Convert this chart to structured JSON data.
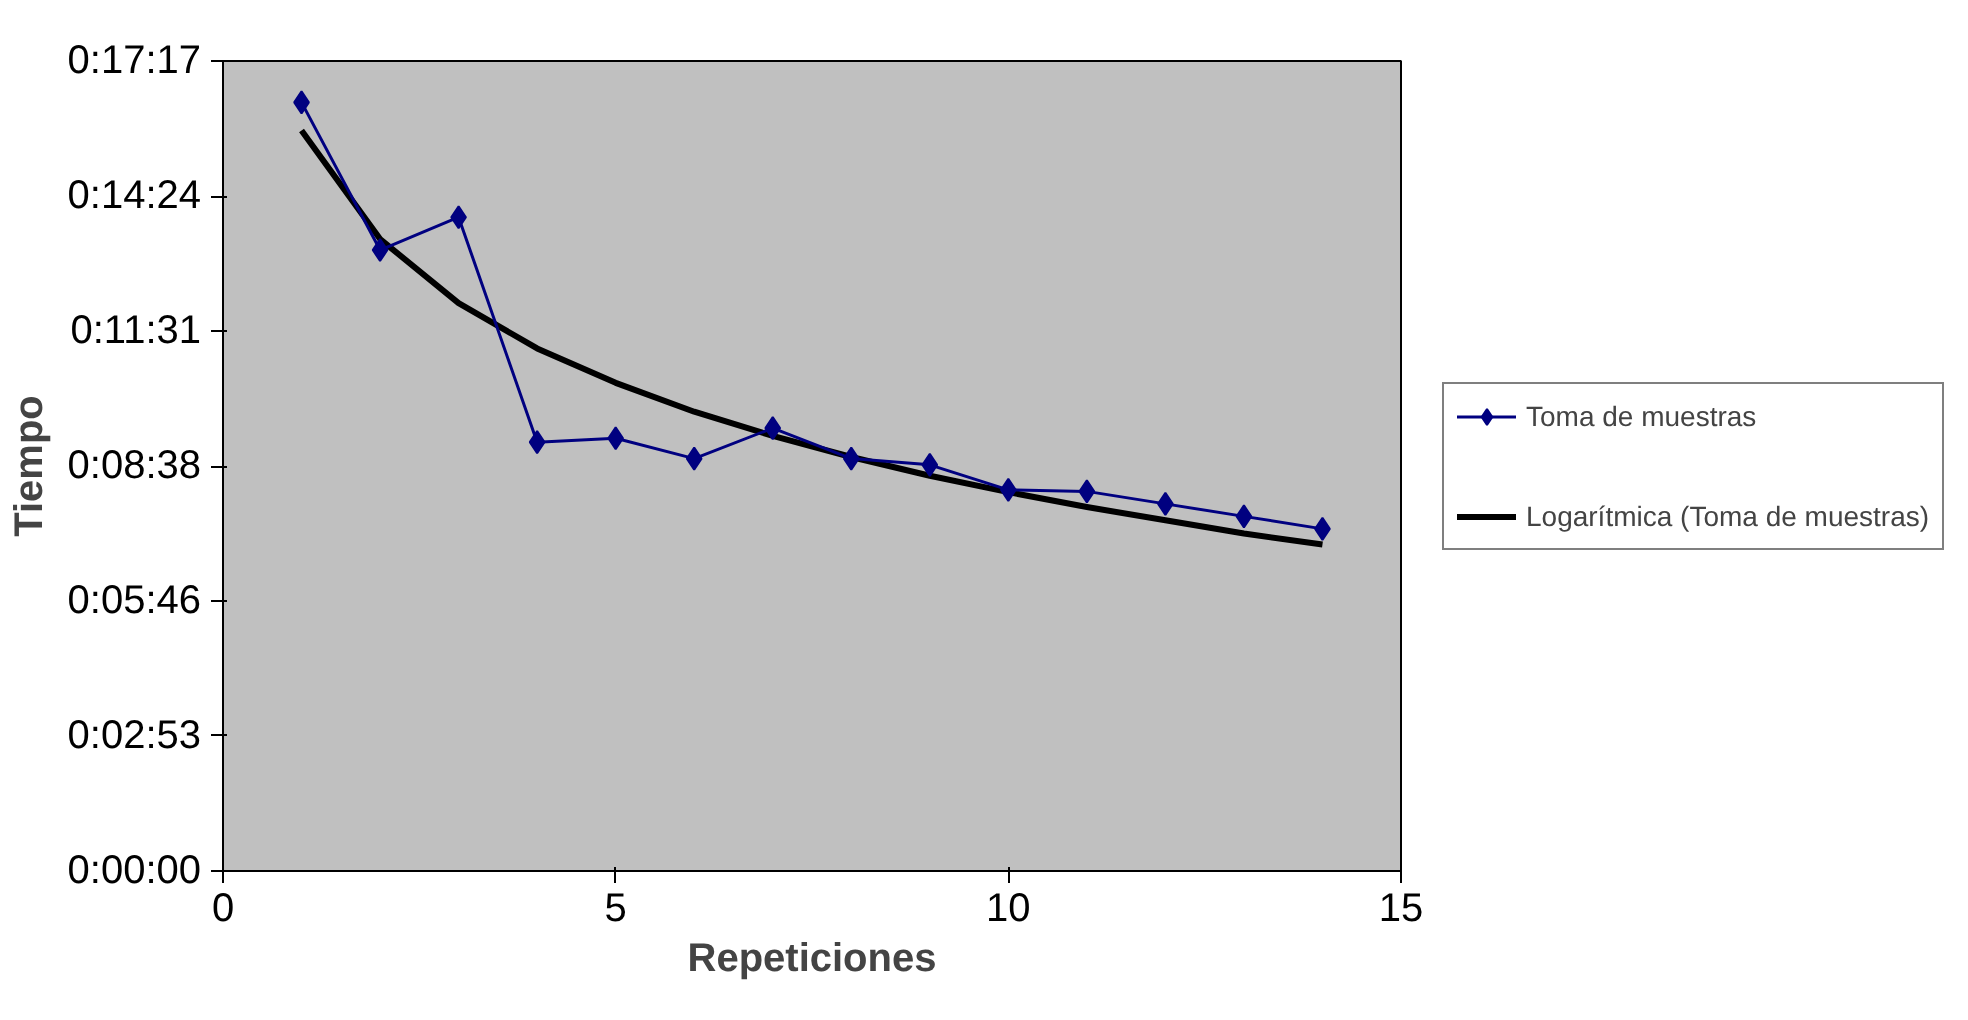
{
  "chart_data": {
    "type": "line",
    "xlabel": "Repeticiones",
    "ylabel": "Tiempo",
    "xlim": [
      0,
      15
    ],
    "xticks": [
      0,
      5,
      10,
      15
    ],
    "ylim": [
      0,
      1037
    ],
    "yticks": [
      {
        "value": 0,
        "label": "0:00:00"
      },
      {
        "value": 173,
        "label": "0:02:53"
      },
      {
        "value": 346,
        "label": "0:05:46"
      },
      {
        "value": 518,
        "label": "0:08:38"
      },
      {
        "value": 691,
        "label": "0:11:31"
      },
      {
        "value": 864,
        "label": "0:14:24"
      },
      {
        "value": 1037,
        "label": "0:17:17"
      }
    ],
    "x": [
      1,
      2,
      3,
      4,
      5,
      6,
      7,
      8,
      9,
      10,
      11,
      12,
      13,
      14
    ],
    "series": [
      {
        "name": "Toma de muestras",
        "color": "#000080",
        "marker": "diamond",
        "values": [
          984,
          795,
          837,
          549,
          554,
          528,
          567,
          528,
          520,
          488,
          486,
          470,
          454,
          438
        ]
      },
      {
        "name": "Logarítmica (Toma de muestras)",
        "color": "#000000",
        "marker": "none",
        "values": [
          948,
          809,
          727,
          669,
          625,
          588,
          557,
          530,
          506,
          485,
          466,
          449,
          432,
          418
        ]
      }
    ],
    "grid": false,
    "legend": "right"
  }
}
